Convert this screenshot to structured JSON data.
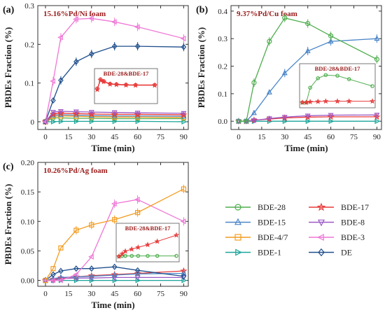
{
  "colors": {
    "BDE-28": "#4fae4f",
    "BDE-15": "#4a86c8",
    "BDE-4/7": "#f39c1f",
    "BDE-1": "#1aa59a",
    "BDE-17": "#e83a3a",
    "BDE-8": "#9b59c6",
    "BDE-3": "#ef77d6",
    "DE": "#1f4e8c"
  },
  "legend": {
    "placement": "bottom-right",
    "entries": [
      {
        "name": "BDE-28",
        "marker": "circle"
      },
      {
        "name": "BDE-17",
        "marker": "star"
      },
      {
        "name": "BDE-15",
        "marker": "triangle-up"
      },
      {
        "name": "BDE-8",
        "marker": "triangle-down"
      },
      {
        "name": "BDE-4/7",
        "marker": "square"
      },
      {
        "name": "BDE-3",
        "marker": "triangle-left"
      },
      {
        "name": "BDE-1",
        "marker": "triangle-right"
      },
      {
        "name": "DE",
        "marker": "diamond"
      }
    ]
  },
  "chart_data": [
    {
      "type": "line",
      "panel": "(a)",
      "title": "15.16%Pd/Ni foam",
      "xlabel": "Time (min)",
      "ylabel": "PBDEs Fraction (%)",
      "xlim": [
        -5,
        93
      ],
      "ylim": [
        -0.02,
        0.3
      ],
      "xticks": [
        0,
        15,
        30,
        45,
        60,
        75,
        90
      ],
      "yticks": [
        0.0,
        0.1,
        0.2,
        0.3
      ],
      "ytick_labels": [
        "0",
        "0.1",
        "0.2",
        "0.3"
      ],
      "x": [
        0,
        5,
        10,
        20,
        30,
        45,
        60,
        90
      ],
      "series": [
        {
          "name": "BDE-3",
          "values": [
            0.0,
            0.105,
            0.218,
            0.265,
            0.267,
            0.258,
            0.245,
            0.215
          ]
        },
        {
          "name": "DE",
          "values": [
            0.0,
            0.055,
            0.107,
            0.155,
            0.175,
            0.195,
            0.195,
            0.193
          ]
        },
        {
          "name": "BDE-8",
          "values": [
            0.0,
            0.025,
            0.027,
            0.026,
            0.025,
            0.024,
            0.023,
            0.022
          ]
        },
        {
          "name": "BDE-17",
          "values": [
            0.0,
            0.02,
            0.022,
            0.021,
            0.02,
            0.019,
            0.019,
            0.018
          ]
        },
        {
          "name": "BDE-15",
          "values": [
            0.0,
            0.017,
            0.018,
            0.017,
            0.016,
            0.015,
            0.015,
            0.014
          ]
        },
        {
          "name": "BDE-4/7",
          "values": [
            0.0,
            0.014,
            0.015,
            0.014,
            0.013,
            0.012,
            0.012,
            0.011
          ]
        },
        {
          "name": "BDE-28",
          "values": [
            0.0,
            0.01,
            0.01,
            0.009,
            0.009,
            0.008,
            0.008,
            0.008
          ]
        },
        {
          "name": "BDE-1",
          "values": [
            0.0,
            0.0,
            0.001,
            0.001,
            0.001,
            0.001,
            0.001,
            0.0
          ]
        }
      ],
      "inset": {
        "label": "BDE-28&BDE-17",
        "xlim": [
          0,
          90
        ],
        "ylim": [
          0,
          1
        ],
        "series": [
          {
            "name": "BDE-28",
            "values": [
              0.55,
              0.96,
              0.88,
              0.76,
              0.74,
              0.72,
              0.71,
              0.71
            ],
            "color_key": "BDE-17"
          },
          {
            "name": "BDE-17",
            "values": [
              0.5,
              0.92,
              0.85,
              0.74,
              0.72,
              0.7,
              0.69,
              0.69
            ]
          }
        ]
      }
    },
    {
      "type": "line",
      "panel": "(b)",
      "title": "9.37%Pd/Cu foam",
      "xlabel": "Time (min)",
      "ylabel": "PBDEs Fraction (%)",
      "xlim": [
        -5,
        93
      ],
      "ylim": [
        -0.03,
        0.42
      ],
      "xticks": [
        0,
        15,
        30,
        45,
        60,
        75,
        90
      ],
      "yticks": [
        0.0,
        0.1,
        0.2,
        0.3,
        0.4
      ],
      "ytick_labels": [
        "0.0",
        "0.1",
        "0.2",
        "0.3",
        "0.4"
      ],
      "x": [
        0,
        5,
        10,
        20,
        30,
        45,
        60,
        90
      ],
      "series": [
        {
          "name": "BDE-28",
          "values": [
            0.0,
            0.0,
            0.14,
            0.29,
            0.375,
            0.355,
            0.31,
            0.225
          ]
        },
        {
          "name": "BDE-15",
          "values": [
            0.0,
            0.0,
            0.03,
            0.105,
            0.175,
            0.255,
            0.29,
            0.3
          ]
        },
        {
          "name": "BDE-8",
          "values": [
            0.0,
            0.0,
            0.003,
            0.01,
            0.015,
            0.02,
            0.022,
            0.023
          ]
        },
        {
          "name": "BDE-17",
          "values": [
            0.0,
            0.0,
            0.004,
            0.008,
            0.012,
            0.015,
            0.016,
            0.016
          ]
        },
        {
          "name": "BDE-1",
          "values": [
            0.0,
            0.0,
            0.0,
            0.0,
            0.0,
            0.0,
            0.0,
            0.0
          ]
        }
      ],
      "inset": {
        "label": "BDE-28&BDE-17",
        "xlim": [
          0,
          90
        ],
        "ylim": [
          0,
          1
        ],
        "series": [
          {
            "name": "BDE-28",
            "values": [
              0.08,
              0.08,
              0.55,
              0.85,
              0.95,
              0.93,
              0.82,
              0.6
            ]
          },
          {
            "name": "BDE-17",
            "values": [
              0.08,
              0.08,
              0.1,
              0.11,
              0.12,
              0.12,
              0.12,
              0.12
            ]
          }
        ]
      }
    },
    {
      "type": "line",
      "panel": "(c)",
      "title": "10.26%Pd/Ag foam",
      "xlabel": "Time (min)",
      "ylabel": "PBDEs Fraction (%)",
      "xlim": [
        -5,
        93
      ],
      "ylim": [
        -0.01,
        0.2
      ],
      "xticks": [
        0,
        15,
        30,
        45,
        60,
        75,
        90
      ],
      "yticks": [
        0.0,
        0.05,
        0.1,
        0.15,
        0.2
      ],
      "ytick_labels": [
        "0.00",
        "0.05",
        "0.10",
        "0.15",
        "0.20"
      ],
      "x": [
        0,
        5,
        10,
        20,
        30,
        45,
        60,
        90
      ],
      "series": [
        {
          "name": "BDE-4/7",
          "values": [
            0.0,
            0.02,
            0.055,
            0.085,
            0.094,
            0.103,
            0.115,
            0.155
          ]
        },
        {
          "name": "BDE-3",
          "values": [
            0.0,
            0.0,
            0.0,
            0.01,
            0.04,
            0.13,
            0.137,
            0.1
          ]
        },
        {
          "name": "DE",
          "values": [
            0.0,
            0.01,
            0.016,
            0.02,
            0.02,
            0.023,
            0.017,
            0.007
          ]
        },
        {
          "name": "BDE-15",
          "values": [
            0.0,
            0.003,
            0.005,
            0.006,
            0.007,
            0.009,
            0.011,
            0.012
          ]
        },
        {
          "name": "BDE-17",
          "values": [
            0.0,
            0.002,
            0.004,
            0.006,
            0.008,
            0.01,
            0.012,
            0.016
          ]
        },
        {
          "name": "BDE-8",
          "values": [
            0.0,
            0.0,
            0.003,
            0.004,
            0.004,
            0.005,
            0.005,
            0.005
          ]
        },
        {
          "name": "BDE-1",
          "values": [
            0.0,
            0.0,
            0.0,
            0.0,
            0.0,
            0.0,
            0.0,
            0.0
          ]
        }
      ],
      "inset": {
        "label": "BDE-28&BDE-17",
        "xlim": [
          0,
          90
        ],
        "ylim": [
          0,
          1
        ],
        "series": [
          {
            "name": "BDE-28",
            "values": [
              0.1,
              0.12,
              0.12,
              0.12,
              0.12,
              0.12,
              0.12,
              0.12
            ]
          },
          {
            "name": "BDE-17",
            "values": [
              0.1,
              0.2,
              0.3,
              0.38,
              0.45,
              0.55,
              0.68,
              0.92
            ]
          }
        ]
      }
    }
  ]
}
